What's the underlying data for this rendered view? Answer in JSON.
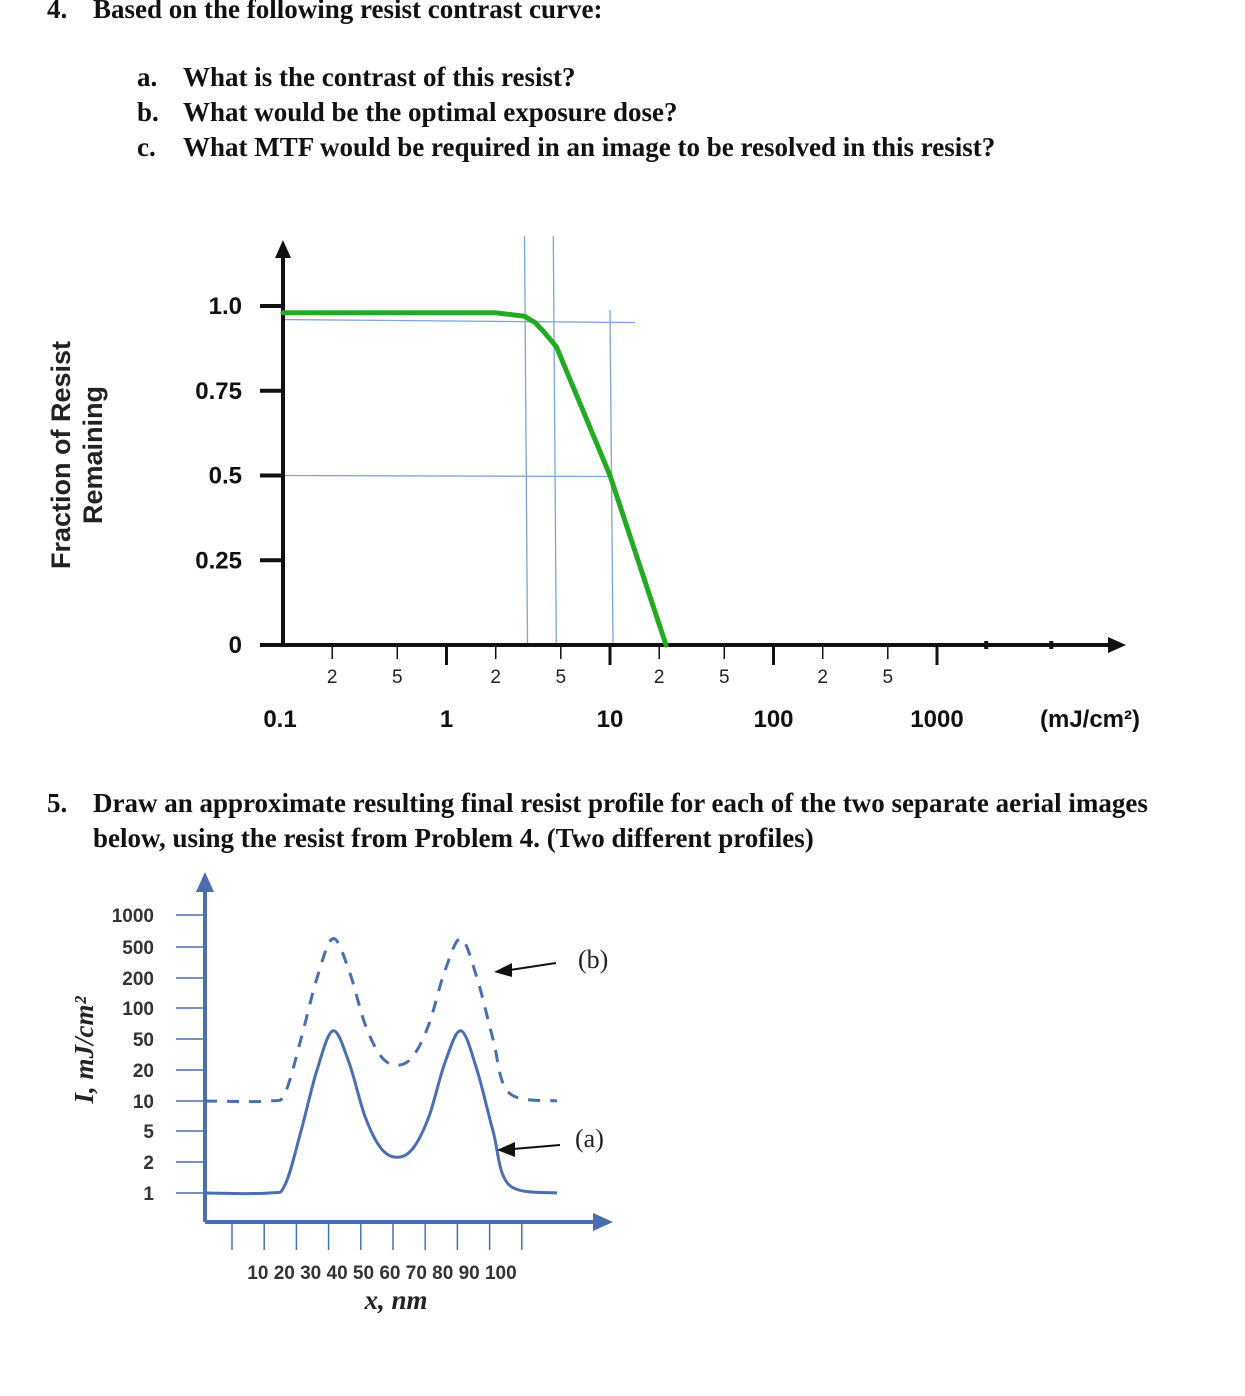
{
  "q4": {
    "number": "4.",
    "title": "Based on the following resist contrast curve:",
    "items": [
      {
        "label": "a.",
        "text": "What is the contrast of this resist?"
      },
      {
        "label": "b.",
        "text": "What would be the optimal exposure dose?"
      },
      {
        "label": "c.",
        "text": "What MTF would be required in an image to be resolved in this resist?"
      }
    ]
  },
  "chart1": {
    "ylabel_line1": "Fraction of Resist",
    "ylabel_line2": "Remaining",
    "yticks": [
      "1.0",
      "0.75",
      "0.5",
      "0.25",
      "0"
    ],
    "xtick_decades": [
      "0.1",
      "1",
      "10",
      "100",
      "1000"
    ],
    "xunit": "(mJ/cm²)",
    "minor_labels": [
      "2",
      "5"
    ]
  },
  "q5": {
    "number": "5.",
    "text": "Draw an approximate resulting final resist profile for each of the two separate aerial images below, using the resist from Problem 4. (Two different profiles)"
  },
  "chart2": {
    "ylabel": "I, mJ/cm²",
    "yticks": [
      "1000",
      "500",
      "200",
      "100",
      "50",
      "20",
      "10",
      "5",
      "2",
      "1"
    ],
    "xticks": "10 20 30 40 50 60 70 80 90 100",
    "xlabel": "x, nm",
    "label_b": "(b)",
    "label_a": "(a)"
  },
  "chart_data": [
    {
      "type": "line",
      "title": "",
      "xlabel": "(mJ/cm²)",
      "ylabel": "Fraction of Resist Remaining",
      "xscale": "log",
      "xlim": [
        0.1,
        2000
      ],
      "ylim": [
        0,
        1.0
      ],
      "series": [
        {
          "color": "#22aa22",
          "x": [
            0.1,
            1,
            2,
            3,
            3.5,
            4,
            4.7,
            10,
            22
          ],
          "y": [
            0.98,
            0.98,
            0.98,
            0.97,
            0.95,
            0.92,
            0.88,
            0.5,
            0.0
          ]
        }
      ],
      "guide_lines": {
        "vertical_x": [
          3,
          4.5,
          10
        ],
        "horizontal_y": [
          0.96,
          0.5
        ]
      },
      "grid": false
    },
    {
      "type": "line",
      "title": "",
      "xlabel": "x, nm",
      "ylabel": "I, mJ/cm²",
      "yscale": "log",
      "xlim": [
        0,
        110
      ],
      "ylim": [
        1,
        1000
      ],
      "series": [
        {
          "name": "(a)",
          "style": "solid",
          "x": [
            0,
            20,
            25,
            30,
            35,
            40,
            45,
            50,
            55,
            60,
            65,
            70,
            75,
            80,
            85,
            90,
            95,
            110
          ],
          "y": [
            1,
            1,
            1.2,
            5,
            20,
            60,
            25,
            7,
            3,
            2.3,
            3,
            7,
            25,
            60,
            20,
            5,
            1.2,
            1
          ]
        },
        {
          "name": "(b)",
          "style": "dashed",
          "x": [
            0,
            20,
            25,
            30,
            35,
            40,
            45,
            50,
            55,
            60,
            65,
            70,
            75,
            80,
            85,
            90,
            95,
            110
          ],
          "y": [
            10,
            10,
            12,
            50,
            200,
            600,
            250,
            70,
            30,
            23,
            30,
            70,
            250,
            600,
            200,
            50,
            12,
            10
          ]
        }
      ],
      "grid": false
    }
  ]
}
